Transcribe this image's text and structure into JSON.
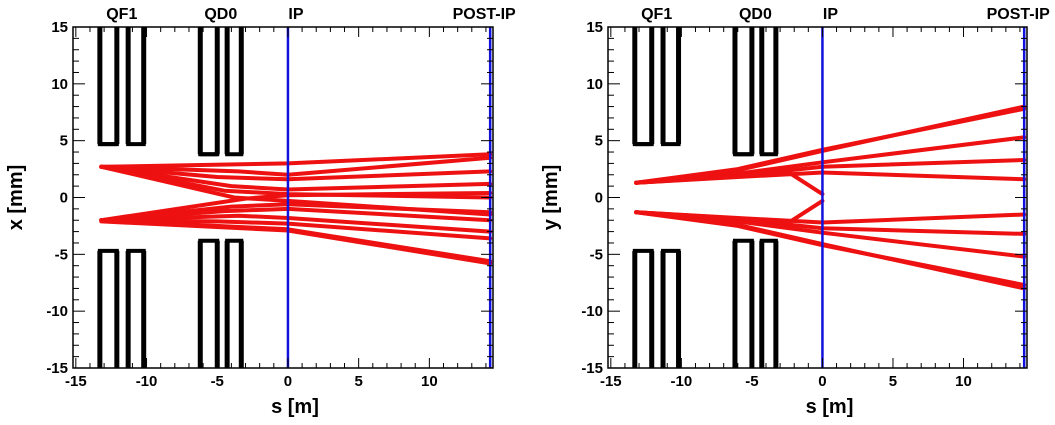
{
  "chart_data": [
    {
      "type": "line",
      "title": "",
      "xlabel": "s [m]",
      "ylabel": "x [mm]",
      "xlim": [
        -15.2,
        14.5
      ],
      "ylim": [
        -15,
        15
      ],
      "xticks": [
        -15,
        -10,
        -5,
        0,
        5,
        10
      ],
      "yticks": [
        -15,
        -10,
        -5,
        0,
        5,
        10,
        15
      ],
      "grid": false,
      "colors": {
        "trajectory": "#ee1111",
        "marker": "#1111dd",
        "magnet": "#000000"
      },
      "markers": [
        {
          "label": "IP",
          "s": 0
        },
        {
          "label": "POST-IP",
          "s": 14.3
        }
      ],
      "magnets": [
        {
          "label": "QF1",
          "s": [
            -13.2,
            -10.3
          ],
          "bars": [
            -13.3,
            -12.1,
            -11.3,
            -10.2
          ],
          "aperture": 4.7,
          "outer": 15
        },
        {
          "label": "QD0",
          "s": [
            -6.2,
            -3.3
          ],
          "bars": [
            -6.2,
            -5.0,
            -4.3,
            -3.3
          ],
          "aperture": 3.8,
          "outer": 15
        }
      ],
      "series": [
        {
          "x": [
            -13.2,
            0,
            14.3
          ],
          "y": [
            2.7,
            3.0,
            3.8
          ]
        },
        {
          "x": [
            -13.2,
            -3.5,
            0,
            14.3
          ],
          "y": [
            2.7,
            2.3,
            2.0,
            3.5
          ]
        },
        {
          "x": [
            -13.2,
            -5.0,
            0,
            14.3
          ],
          "y": [
            2.7,
            1.8,
            1.6,
            2.3
          ]
        },
        {
          "x": [
            -13.2,
            -4.0,
            0,
            14.3
          ],
          "y": [
            2.7,
            1.0,
            0.7,
            1.2
          ]
        },
        {
          "x": [
            -13.2,
            -4.5,
            0,
            14.3
          ],
          "y": [
            2.7,
            0.6,
            0.3,
            0.0
          ]
        },
        {
          "x": [
            -13.2,
            -3.8,
            0,
            14.3
          ],
          "y": [
            2.7,
            0.0,
            -0.3,
            -1.5
          ]
        },
        {
          "x": [
            -13.2,
            -3.0,
            0,
            14.3
          ],
          "y": [
            -2.0,
            -0.1,
            0.2,
            0.4
          ]
        },
        {
          "x": [
            -13.2,
            -4.0,
            0,
            14.3
          ],
          "y": [
            -2.0,
            -0.8,
            -0.6,
            -1.3
          ]
        },
        {
          "x": [
            -13.2,
            -4.5,
            0,
            14.3
          ],
          "y": [
            -2.0,
            -1.2,
            -1.0,
            -2.0
          ]
        },
        {
          "x": [
            -13.2,
            -3.5,
            0,
            14.3
          ],
          "y": [
            -2.0,
            -1.6,
            -1.8,
            -3.0
          ]
        },
        {
          "x": [
            -13.2,
            -5.0,
            0,
            14.3
          ],
          "y": [
            -2.0,
            -2.1,
            -2.3,
            -3.6
          ]
        },
        {
          "x": [
            -13.2,
            0,
            14.3
          ],
          "y": [
            -2.0,
            -2.8,
            -5.6
          ]
        },
        {
          "x": [
            -13.2,
            0,
            14.3
          ],
          "y": [
            -2.1,
            -2.9,
            -5.8
          ]
        }
      ]
    },
    {
      "type": "line",
      "title": "",
      "xlabel": "s [m]",
      "ylabel": "y [mm]",
      "xlim": [
        -15.2,
        14.5
      ],
      "ylim": [
        -15,
        15
      ],
      "xticks": [
        -15,
        -10,
        -5,
        0,
        5,
        10
      ],
      "yticks": [
        -15,
        -10,
        -5,
        0,
        5,
        10,
        15
      ],
      "grid": false,
      "colors": {
        "trajectory": "#ee1111",
        "marker": "#1111dd",
        "magnet": "#000000"
      },
      "markers": [
        {
          "label": "IP",
          "s": 0
        },
        {
          "label": "POST-IP",
          "s": 14.3
        }
      ],
      "magnets": [
        {
          "label": "QF1",
          "s": [
            -13.2,
            -10.3
          ],
          "bars": [
            -13.3,
            -12.1,
            -11.3,
            -10.2
          ],
          "aperture": 4.7,
          "outer": 15
        },
        {
          "label": "QD0",
          "s": [
            -6.2,
            -3.3
          ],
          "bars": [
            -6.2,
            -5.0,
            -4.3,
            -3.3
          ],
          "aperture": 3.8,
          "outer": 15
        }
      ],
      "series": [
        {
          "x": [
            -13.2,
            -6.0,
            0,
            14.3
          ],
          "y": [
            1.3,
            2.5,
            4.2,
            7.8
          ]
        },
        {
          "x": [
            -13.2,
            -6.0,
            0,
            14.3
          ],
          "y": [
            1.3,
            2.4,
            4.1,
            8.0
          ]
        },
        {
          "x": [
            -13.2,
            -6.0,
            0,
            14.3
          ],
          "y": [
            1.3,
            2.1,
            3.1,
            5.3
          ]
        },
        {
          "x": [
            -13.2,
            -6.0,
            0,
            14.3
          ],
          "y": [
            1.3,
            1.9,
            2.7,
            3.3
          ]
        },
        {
          "x": [
            -13.2,
            -6.0,
            0,
            14.3
          ],
          "y": [
            1.3,
            1.8,
            2.2,
            1.6
          ]
        },
        {
          "x": [
            -13.2,
            -4.0,
            -2.5,
            0
          ],
          "y": [
            1.3,
            2.0,
            2.3,
            0.3
          ]
        },
        {
          "x": [
            -13.2,
            -6.0,
            0,
            14.3
          ],
          "y": [
            -1.3,
            -1.8,
            -2.2,
            -1.5
          ]
        },
        {
          "x": [
            -13.2,
            -6.0,
            0,
            14.3
          ],
          "y": [
            -1.3,
            -1.9,
            -2.7,
            -3.2
          ]
        },
        {
          "x": [
            -13.2,
            -6.0,
            0,
            14.3
          ],
          "y": [
            -1.3,
            -2.1,
            -3.1,
            -5.2
          ]
        },
        {
          "x": [
            -13.2,
            -6.0,
            0,
            14.3
          ],
          "y": [
            -1.3,
            -2.5,
            -4.2,
            -7.7
          ]
        },
        {
          "x": [
            -13.2,
            -6.0,
            0,
            14.3
          ],
          "y": [
            -1.3,
            -2.4,
            -4.1,
            -8.0
          ]
        },
        {
          "x": [
            -13.2,
            -4.0,
            -2.5,
            0
          ],
          "y": [
            -1.3,
            -2.0,
            -2.3,
            -0.3
          ]
        }
      ]
    }
  ]
}
